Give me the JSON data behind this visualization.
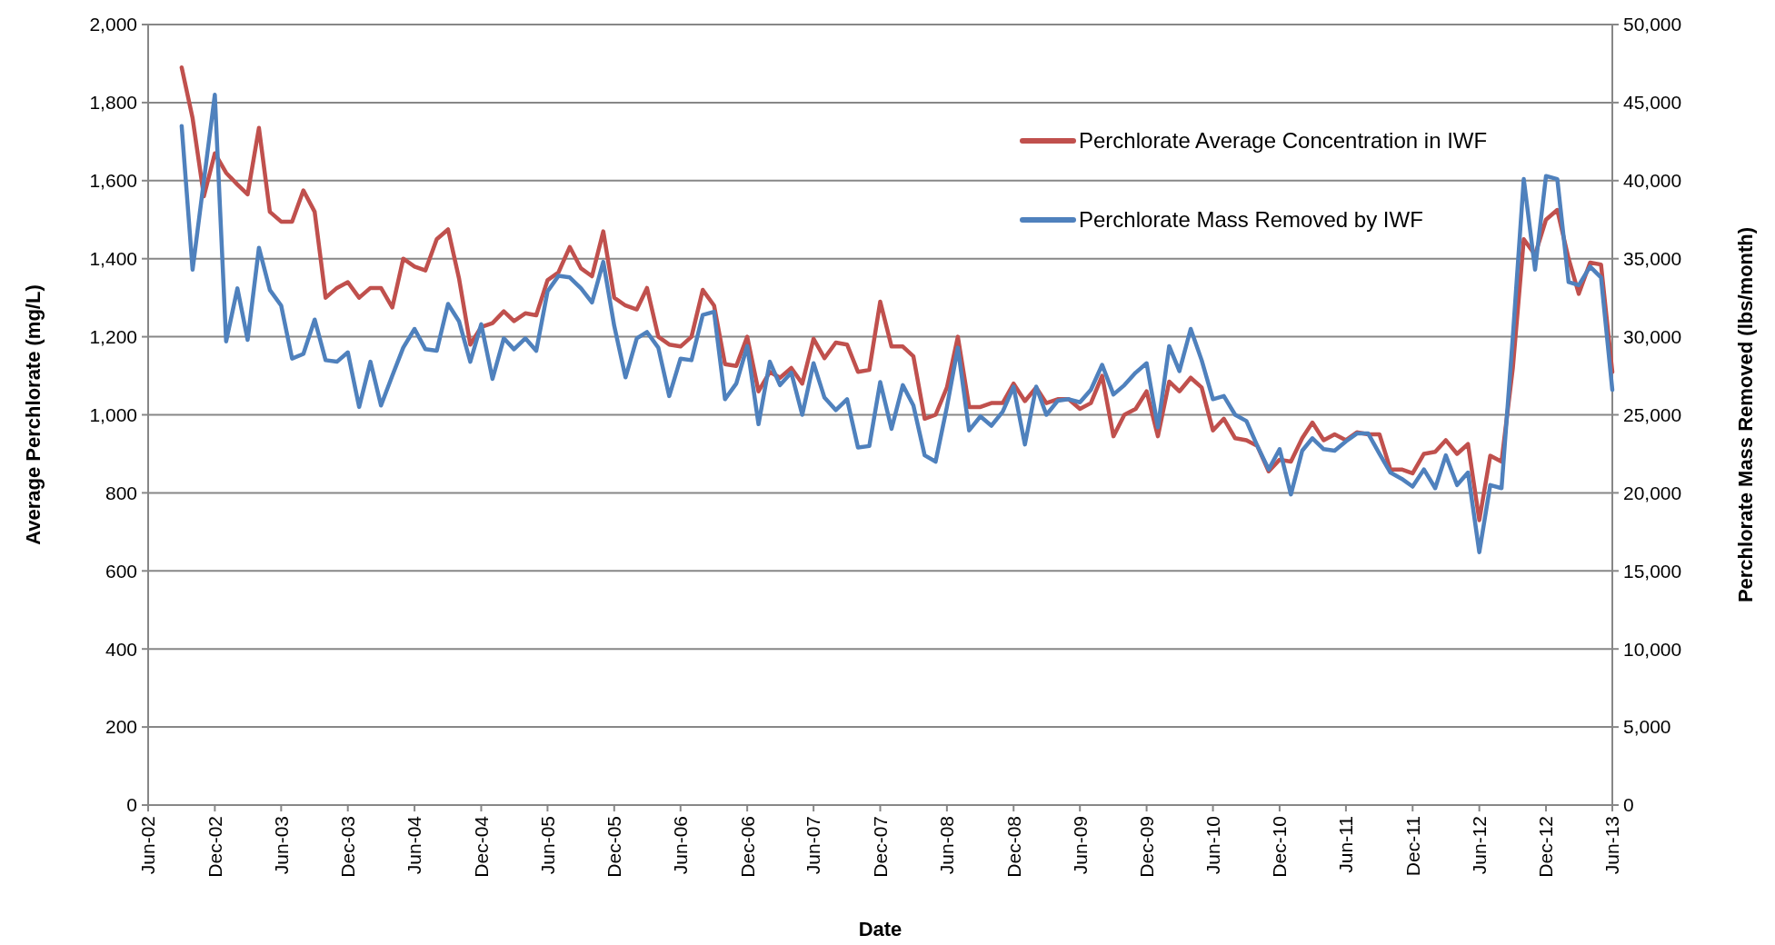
{
  "chart_data": {
    "type": "line",
    "xlabel": "Date",
    "ylabel": "Average Perchlorate (mg/L)",
    "y2label": "Perchlorate Mass Removed (lbs/month)",
    "x": [
      "2002-09",
      "2002-10",
      "2002-11",
      "2002-12",
      "2003-01",
      "2003-02",
      "2003-03",
      "2003-04",
      "2003-05",
      "2003-06",
      "2003-07",
      "2003-08",
      "2003-09",
      "2003-10",
      "2003-11",
      "2003-12",
      "2004-01",
      "2004-02",
      "2004-03",
      "2004-04",
      "2004-05",
      "2004-06",
      "2004-07",
      "2004-08",
      "2004-09",
      "2004-10",
      "2004-11",
      "2004-12",
      "2005-01",
      "2005-02",
      "2005-03",
      "2005-04",
      "2005-05",
      "2005-06",
      "2005-07",
      "2005-08",
      "2005-09",
      "2005-10",
      "2005-11",
      "2005-12",
      "2006-01",
      "2006-02",
      "2006-03",
      "2006-04",
      "2006-05",
      "2006-06",
      "2006-07",
      "2006-08",
      "2006-09",
      "2006-10",
      "2006-11",
      "2006-12",
      "2007-01",
      "2007-02",
      "2007-03",
      "2007-04",
      "2007-05",
      "2007-06",
      "2007-07",
      "2007-08",
      "2007-09",
      "2007-10",
      "2007-11",
      "2007-12",
      "2008-01",
      "2008-02",
      "2008-03",
      "2008-04",
      "2008-05",
      "2008-06",
      "2008-07",
      "2008-08",
      "2008-09",
      "2008-10",
      "2008-11",
      "2008-12",
      "2009-01",
      "2009-02",
      "2009-03",
      "2009-04",
      "2009-05",
      "2009-06",
      "2009-07",
      "2009-08",
      "2009-09",
      "2009-10",
      "2009-11",
      "2009-12",
      "2010-01",
      "2010-02",
      "2010-03",
      "2010-04",
      "2010-05",
      "2010-06",
      "2010-07",
      "2010-08",
      "2010-09",
      "2010-10",
      "2010-11",
      "2010-12",
      "2011-01",
      "2011-02",
      "2011-03",
      "2011-04",
      "2011-05",
      "2011-06",
      "2011-07",
      "2011-08",
      "2011-09",
      "2011-10",
      "2011-11",
      "2011-12",
      "2012-01",
      "2012-02",
      "2012-03",
      "2012-04",
      "2012-05",
      "2012-06",
      "2012-07",
      "2012-08",
      "2012-09",
      "2012-10",
      "2012-11",
      "2012-12",
      "2013-01",
      "2013-02",
      "2013-03",
      "2013-04",
      "2013-05",
      "2013-06"
    ],
    "series": [
      {
        "name": "Perchlorate Average Concentration in IWF",
        "color": "#c0504d",
        "values": [
          1890,
          1760,
          1560,
          1670,
          1620,
          1590,
          1565,
          1735,
          1520,
          1495,
          1495,
          1575,
          1520,
          1300,
          1325,
          1340,
          1300,
          1325,
          1325,
          1275,
          1400,
          1380,
          1370,
          1450,
          1475,
          1350,
          1180,
          1225,
          1235,
          1265,
          1240,
          1260,
          1255,
          1345,
          1365,
          1430,
          1375,
          1355,
          1470,
          1300,
          1280,
          1270,
          1325,
          1200,
          1180,
          1175,
          1200,
          1320,
          1280,
          1130,
          1125,
          1200,
          1060,
          1110,
          1095,
          1120,
          1080,
          1195,
          1145,
          1185,
          1180,
          1110,
          1115,
          1290,
          1175,
          1175,
          1150,
          990,
          1000,
          1070,
          1200,
          1020,
          1020,
          1030,
          1030,
          1080,
          1035,
          1070,
          1030,
          1040,
          1040,
          1015,
          1030,
          1100,
          945,
          1000,
          1015,
          1060,
          945,
          1085,
          1060,
          1095,
          1070,
          960,
          990,
          940,
          935,
          920,
          855,
          885,
          880,
          940,
          980,
          935,
          950,
          935,
          955,
          950,
          950,
          860,
          860,
          850,
          900,
          905,
          935,
          900,
          925,
          730,
          895,
          880,
          1120,
          1450,
          1410,
          1500,
          1525,
          1400,
          1310,
          1390,
          1385,
          1110
        ]
      },
      {
        "name": "Perchlorate Mass Removed by IWF",
        "color": "#4f81bd",
        "axis": "y2",
        "values": [
          43500,
          34300,
          40000,
          45500,
          29700,
          33100,
          29800,
          35700,
          33000,
          32000,
          28600,
          28900,
          31100,
          28500,
          28400,
          29000,
          25500,
          28400,
          25600,
          27500,
          29300,
          30500,
          29200,
          29100,
          32100,
          31000,
          28400,
          30800,
          27300,
          29900,
          29200,
          29900,
          29100,
          32900,
          33900,
          33800,
          33100,
          32200,
          34800,
          30700,
          27400,
          29900,
          30300,
          29300,
          26200,
          28600,
          28500,
          31400,
          31600,
          26000,
          27000,
          29400,
          24400,
          28400,
          26900,
          27700,
          25000,
          28300,
          26100,
          25300,
          26000,
          22900,
          23000,
          27100,
          24100,
          26900,
          25600,
          22400,
          22000,
          25500,
          29300,
          24000,
          24900,
          24300,
          25200,
          26800,
          23100,
          26800,
          25000,
          25900,
          26000,
          25800,
          26600,
          28200,
          26300,
          26900,
          27700,
          28300,
          24200,
          29400,
          27800,
          30500,
          28500,
          26000,
          26200,
          25000,
          24600,
          23000,
          21500,
          22800,
          19900,
          22700,
          23500,
          22800,
          22700,
          23300,
          23800,
          23800,
          22500,
          21300,
          20900,
          20400,
          21500,
          20300,
          22400,
          20500,
          21300,
          16200,
          20500,
          20300,
          30000,
          40100,
          34300,
          40300,
          40100,
          33500,
          33300,
          34500,
          33800,
          26600
        ]
      }
    ],
    "xlim": [
      "2002-06",
      "2013-06"
    ],
    "xticks": [
      {
        "value": "2002-06",
        "label": "Jun-02"
      },
      {
        "value": "2002-12",
        "label": "Dec-02"
      },
      {
        "value": "2003-06",
        "label": "Jun-03"
      },
      {
        "value": "2003-12",
        "label": "Dec-03"
      },
      {
        "value": "2004-06",
        "label": "Jun-04"
      },
      {
        "value": "2004-12",
        "label": "Dec-04"
      },
      {
        "value": "2005-06",
        "label": "Jun-05"
      },
      {
        "value": "2005-12",
        "label": "Dec-05"
      },
      {
        "value": "2006-06",
        "label": "Jun-06"
      },
      {
        "value": "2006-12",
        "label": "Dec-06"
      },
      {
        "value": "2007-06",
        "label": "Jun-07"
      },
      {
        "value": "2007-12",
        "label": "Dec-07"
      },
      {
        "value": "2008-06",
        "label": "Jun-08"
      },
      {
        "value": "2008-12",
        "label": "Dec-08"
      },
      {
        "value": "2009-06",
        "label": "Jun-09"
      },
      {
        "value": "2009-12",
        "label": "Dec-09"
      },
      {
        "value": "2010-06",
        "label": "Jun-10"
      },
      {
        "value": "2010-12",
        "label": "Dec-10"
      },
      {
        "value": "2011-06",
        "label": "Jun-11"
      },
      {
        "value": "2011-12",
        "label": "Dec-11"
      },
      {
        "value": "2012-06",
        "label": "Jun-12"
      },
      {
        "value": "2012-12",
        "label": "Dec-12"
      },
      {
        "value": "2013-06",
        "label": "Jun-13"
      }
    ],
    "ylim": [
      0,
      2000
    ],
    "yticks": [
      {
        "value": 0,
        "label": "0"
      },
      {
        "value": 200,
        "label": "200"
      },
      {
        "value": 400,
        "label": "400"
      },
      {
        "value": 600,
        "label": "600"
      },
      {
        "value": 800,
        "label": "800"
      },
      {
        "value": 1000,
        "label": "1,000"
      },
      {
        "value": 1200,
        "label": "1,200"
      },
      {
        "value": 1400,
        "label": "1,400"
      },
      {
        "value": 1600,
        "label": "1,600"
      },
      {
        "value": 1800,
        "label": "1,800"
      },
      {
        "value": 2000,
        "label": "2,000"
      }
    ],
    "y2lim": [
      0,
      50000
    ],
    "y2ticks": [
      {
        "value": 0,
        "label": "0"
      },
      {
        "value": 5000,
        "label": "5,000"
      },
      {
        "value": 10000,
        "label": "10,000"
      },
      {
        "value": 15000,
        "label": "15,000"
      },
      {
        "value": 20000,
        "label": "20,000"
      },
      {
        "value": 25000,
        "label": "25,000"
      },
      {
        "value": 30000,
        "label": "30,000"
      },
      {
        "value": 35000,
        "label": "35,000"
      },
      {
        "value": 40000,
        "label": "40,000"
      },
      {
        "value": 45000,
        "label": "45,000"
      },
      {
        "value": 50000,
        "label": "50,000"
      }
    ],
    "grid": "y",
    "legend": "top right",
    "marker": "none",
    "line_style": "solid"
  }
}
